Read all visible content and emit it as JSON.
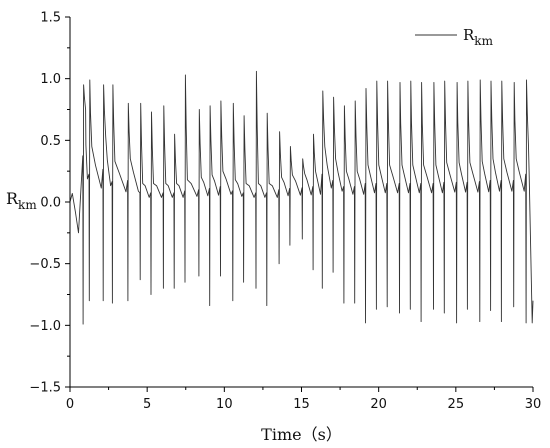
{
  "chart_data": {
    "type": "line",
    "xlabel": "Time（s）",
    "ylabel": {
      "main": "R",
      "sub": "km"
    },
    "xlim": [
      0,
      30
    ],
    "ylim": [
      -1.5,
      1.5
    ],
    "xticks": [
      0,
      5,
      10,
      15,
      20,
      25,
      30
    ],
    "xtick_labels": [
      "0",
      "5",
      "10",
      "15",
      "20",
      "25",
      "30"
    ],
    "yticks": [
      -1.5,
      -1.0,
      -0.5,
      0.0,
      0.5,
      1.0,
      1.5
    ],
    "ytick_labels": [
      "−1.5",
      "−1.0",
      "−0.5",
      "0.0",
      "0.5",
      "1.0",
      "1.5"
    ],
    "grid": false,
    "legend": {
      "position": "top-right"
    },
    "series": [
      {
        "name": {
          "main": "R",
          "sub": "km"
        },
        "color": "#333333",
        "spikes": [
          {
            "t": 0.85,
            "lo": -0.99,
            "hi": 0.95,
            "base": 0.75
          },
          {
            "t": 1.25,
            "lo": -0.8,
            "hi": 0.99,
            "base": 0.45
          },
          {
            "t": 2.15,
            "lo": -0.8,
            "hi": 0.95,
            "base": 0.53
          },
          {
            "t": 2.75,
            "lo": -0.82,
            "hi": 0.95,
            "base": 0.33
          },
          {
            "t": 3.75,
            "lo": -0.8,
            "hi": 0.8,
            "base": 0.35
          },
          {
            "t": 4.55,
            "lo": -0.63,
            "hi": 0.8,
            "base": 0.15
          },
          {
            "t": 5.25,
            "lo": -0.75,
            "hi": 0.73,
            "base": 0.15
          },
          {
            "t": 6.05,
            "lo": -0.7,
            "hi": 0.78,
            "base": 0.15
          },
          {
            "t": 6.75,
            "lo": -0.7,
            "hi": 0.55,
            "base": 0.15
          },
          {
            "t": 7.45,
            "lo": -0.65,
            "hi": 1.03,
            "base": 0.18
          },
          {
            "t": 8.35,
            "lo": -0.6,
            "hi": 0.75,
            "base": 0.2
          },
          {
            "t": 9.05,
            "lo": -0.84,
            "hi": 0.78,
            "base": 0.22
          },
          {
            "t": 9.75,
            "lo": -0.6,
            "hi": 0.82,
            "base": 0.25
          },
          {
            "t": 10.55,
            "lo": -0.8,
            "hi": 0.8,
            "base": 0.18
          },
          {
            "t": 11.25,
            "lo": -0.65,
            "hi": 0.7,
            "base": 0.15
          },
          {
            "t": 12.05,
            "lo": -0.7,
            "hi": 1.06,
            "base": 0.15
          },
          {
            "t": 12.75,
            "lo": -0.84,
            "hi": 0.72,
            "base": 0.15
          },
          {
            "t": 13.55,
            "lo": -0.5,
            "hi": 0.57,
            "base": 0.2
          },
          {
            "t": 14.25,
            "lo": -0.35,
            "hi": 0.45,
            "base": 0.22
          },
          {
            "t": 15.05,
            "lo": -0.3,
            "hi": 0.35,
            "base": 0.23
          },
          {
            "t": 15.75,
            "lo": -0.55,
            "hi": 0.55,
            "base": 0.25
          },
          {
            "t": 16.35,
            "lo": -0.7,
            "hi": 0.9,
            "base": 0.45
          },
          {
            "t": 17.05,
            "lo": -0.57,
            "hi": 0.85,
            "base": 0.35
          },
          {
            "t": 17.75,
            "lo": -0.82,
            "hi": 0.78,
            "base": 0.25
          },
          {
            "t": 18.45,
            "lo": -0.82,
            "hi": 0.82,
            "base": 0.25
          },
          {
            "t": 19.15,
            "lo": -0.98,
            "hi": 0.92,
            "base": 0.3
          },
          {
            "t": 19.85,
            "lo": -0.87,
            "hi": 0.98,
            "base": 0.3
          },
          {
            "t": 20.55,
            "lo": -0.85,
            "hi": 0.98,
            "base": 0.3
          },
          {
            "t": 21.35,
            "lo": -0.9,
            "hi": 0.97,
            "base": 0.3
          },
          {
            "t": 22.05,
            "lo": -0.87,
            "hi": 0.98,
            "base": 0.3
          },
          {
            "t": 22.75,
            "lo": -0.97,
            "hi": 0.97,
            "base": 0.3
          },
          {
            "t": 23.55,
            "lo": -0.87,
            "hi": 0.97,
            "base": 0.3
          },
          {
            "t": 24.25,
            "lo": -0.9,
            "hi": 0.98,
            "base": 0.32
          },
          {
            "t": 25.05,
            "lo": -0.98,
            "hi": 0.97,
            "base": 0.32
          },
          {
            "t": 25.75,
            "lo": -0.87,
            "hi": 0.98,
            "base": 0.32
          },
          {
            "t": 26.55,
            "lo": -0.97,
            "hi": 0.99,
            "base": 0.33
          },
          {
            "t": 27.25,
            "lo": -0.88,
            "hi": 0.98,
            "base": 0.35
          },
          {
            "t": 27.95,
            "lo": -0.97,
            "hi": 0.98,
            "base": 0.35
          },
          {
            "t": 28.75,
            "lo": -0.85,
            "hi": 0.97,
            "base": 0.35
          },
          {
            "t": 29.55,
            "lo": -0.98,
            "hi": 0.99,
            "base": 0.45
          }
        ]
      }
    ]
  }
}
